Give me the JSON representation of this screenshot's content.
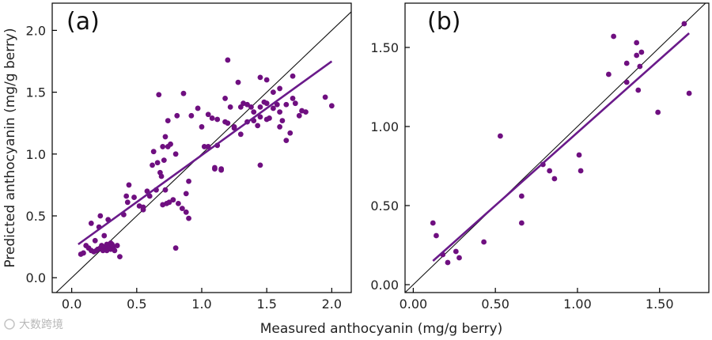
{
  "watermark": "大数跨境",
  "chart_data": [
    {
      "type": "scatter",
      "panel_label": "(a)",
      "xlim": [
        -0.15,
        2.15
      ],
      "ylim": [
        -0.12,
        2.22
      ],
      "xticks": [
        0.0,
        0.5,
        1.0,
        1.5,
        2.0
      ],
      "xtick_labels": [
        "0.0",
        "0.5",
        "1.0",
        "1.5",
        "2.0"
      ],
      "yticks": [
        0.0,
        0.5,
        1.0,
        1.5,
        2.0
      ],
      "ytick_labels": [
        "0.0",
        "0.5",
        "1.0",
        "1.5",
        "2.0"
      ],
      "identity_line": true,
      "fit_line": {
        "x": [
          0.05,
          2.0
        ],
        "y": [
          0.27,
          1.75
        ]
      },
      "x": [
        0.07,
        0.09,
        0.11,
        0.13,
        0.15,
        0.17,
        0.18,
        0.2,
        0.22,
        0.23,
        0.24,
        0.25,
        0.26,
        0.27,
        0.27,
        0.28,
        0.29,
        0.3,
        0.3,
        0.31,
        0.32,
        0.33,
        0.35,
        0.37,
        0.4,
        0.42,
        0.44,
        0.22,
        0.25,
        0.15,
        0.28,
        0.31,
        0.19,
        0.21,
        0.43,
        0.48,
        0.52,
        0.55,
        0.58,
        0.62,
        0.66,
        0.68,
        0.7,
        0.72,
        0.74,
        0.76,
        0.8,
        0.82,
        0.85,
        0.88,
        0.9,
        0.55,
        0.6,
        0.65,
        0.7,
        0.73,
        0.75,
        0.78,
        0.8,
        0.63,
        0.67,
        0.71,
        0.74,
        0.81,
        0.86,
        0.92,
        0.69,
        0.72,
        0.88,
        0.9,
        0.97,
        1.0,
        1.02,
        1.05,
        1.08,
        1.1,
        1.12,
        1.15,
        1.18,
        1.2,
        1.22,
        1.25,
        1.28,
        1.3,
        1.32,
        1.35,
        1.38,
        1.4,
        1.43,
        1.45,
        1.48,
        1.5,
        1.52,
        1.55,
        1.58,
        1.6,
        1.62,
        1.65,
        1.68,
        1.7,
        1.72,
        1.75,
        1.77,
        1.8,
        1.45,
        1.5,
        1.55,
        1.6,
        1.95,
        2.0,
        1.1,
        1.15,
        1.25,
        1.3,
        1.35,
        1.45,
        1.5,
        1.6,
        1.65,
        1.7,
        1.05,
        1.12,
        1.18,
        1.2,
        1.4,
        1.45
      ],
      "y": [
        0.19,
        0.2,
        0.26,
        0.24,
        0.22,
        0.21,
        0.3,
        0.23,
        0.24,
        0.26,
        0.22,
        0.25,
        0.23,
        0.22,
        0.27,
        0.24,
        0.25,
        0.23,
        0.28,
        0.26,
        0.25,
        0.22,
        0.26,
        0.17,
        0.51,
        0.66,
        0.75,
        0.5,
        0.34,
        0.44,
        0.47,
        0.27,
        0.22,
        0.41,
        0.61,
        0.65,
        0.58,
        0.55,
        0.7,
        0.91,
        0.93,
        0.85,
        1.06,
        1.14,
        1.06,
        1.08,
        1.0,
        0.6,
        0.56,
        0.53,
        0.48,
        0.57,
        0.66,
        0.71,
        0.59,
        0.6,
        0.61,
        0.63,
        0.24,
        1.02,
        1.48,
        0.95,
        1.27,
        1.31,
        1.49,
        1.31,
        0.82,
        0.71,
        0.68,
        0.78,
        1.37,
        1.22,
        1.06,
        1.32,
        1.29,
        0.88,
        1.28,
        0.88,
        1.45,
        1.76,
        1.38,
        1.21,
        1.58,
        1.38,
        1.41,
        1.4,
        1.38,
        1.27,
        1.23,
        1.38,
        1.42,
        1.41,
        1.29,
        1.37,
        1.4,
        1.34,
        1.27,
        1.11,
        1.17,
        1.45,
        1.41,
        1.31,
        1.35,
        1.34,
        1.62,
        1.6,
        1.5,
        1.53,
        1.46,
        1.39,
        0.89,
        0.87,
        1.22,
        1.16,
        1.26,
        0.91,
        1.28,
        1.22,
        1.4,
        1.63,
        1.06,
        1.07,
        1.26,
        1.25,
        1.34,
        1.3
      ]
    },
    {
      "type": "scatter",
      "panel_label": "(b)",
      "xlim": [
        -0.05,
        1.8
      ],
      "ylim": [
        -0.05,
        1.78
      ],
      "xticks": [
        0.0,
        0.5,
        1.0,
        1.5
      ],
      "xtick_labels": [
        "0.00",
        "0.50",
        "1.00",
        "1.50"
      ],
      "yticks": [
        0.0,
        0.5,
        1.0,
        1.5
      ],
      "ytick_labels": [
        "0.00",
        "0.50",
        "1.00",
        "1.50"
      ],
      "identity_line": true,
      "fit_line": {
        "x": [
          0.12,
          1.68
        ],
        "y": [
          0.15,
          1.59
        ]
      },
      "x": [
        0.12,
        0.14,
        0.18,
        0.21,
        0.26,
        0.28,
        0.43,
        0.53,
        0.66,
        0.66,
        0.79,
        0.83,
        0.86,
        1.01,
        1.02,
        1.19,
        1.22,
        1.3,
        1.3,
        1.36,
        1.36,
        1.37,
        1.38,
        1.39,
        1.49,
        1.65,
        1.68
      ],
      "y": [
        0.39,
        0.31,
        0.19,
        0.14,
        0.21,
        0.17,
        0.27,
        0.94,
        0.56,
        0.39,
        0.76,
        0.72,
        0.67,
        0.82,
        0.72,
        1.33,
        1.57,
        1.4,
        1.28,
        1.53,
        1.45,
        1.23,
        1.38,
        1.47,
        1.09,
        1.65,
        1.21
      ]
    }
  ],
  "ylabel": "Predicted anthocyanin (mg/g berry)",
  "xlabel": "Measured anthocyanin (mg/g berry)"
}
